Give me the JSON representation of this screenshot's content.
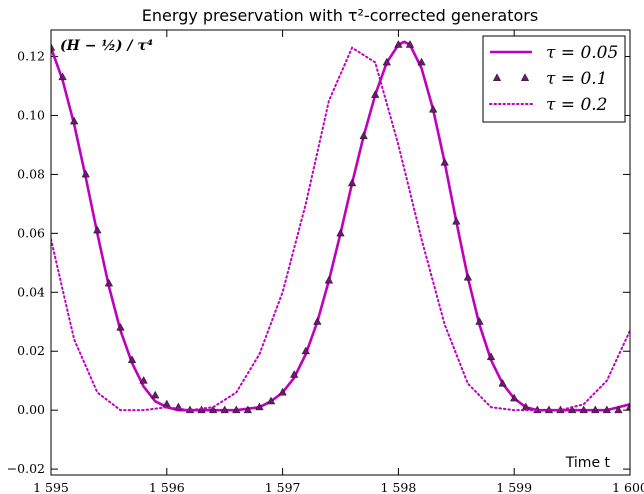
{
  "chart_data": {
    "type": "line",
    "title": "Energy preservation with τ²-corrected generators",
    "annotation": "(H − ½) / τ⁴",
    "xlabel": "Time t",
    "ylabel": "",
    "xlim": [
      1595,
      1600
    ],
    "ylim": [
      -0.022,
      0.129
    ],
    "x_ticks": [
      1595,
      1596,
      1597,
      1598,
      1599,
      1600
    ],
    "x_tick_labels": [
      "1 595",
      "1 596",
      "1 597",
      "1 598",
      "1 599",
      "1 600"
    ],
    "y_ticks": [
      -0.02,
      0.0,
      0.02,
      0.04,
      0.06,
      0.08,
      0.1,
      0.12
    ],
    "y_tick_labels": [
      "−0.02",
      "0.00",
      "0.02",
      "0.04",
      "0.06",
      "0.08",
      "0.10",
      "0.12"
    ],
    "legend_position": "top-right",
    "color": "#BF00BF",
    "marker_color": "#6A1A6A",
    "series": [
      {
        "name": "τ = 0.05",
        "style": "solid",
        "x": [
          1595.0,
          1595.1,
          1595.2,
          1595.3,
          1595.4,
          1595.5,
          1595.6,
          1595.7,
          1595.8,
          1595.9,
          1596.0,
          1596.1,
          1596.2,
          1596.3,
          1596.4,
          1596.5,
          1596.6,
          1596.7,
          1596.8,
          1596.9,
          1597.0,
          1597.1,
          1597.2,
          1597.3,
          1597.4,
          1597.5,
          1597.6,
          1597.7,
          1597.8,
          1597.9,
          1598.0,
          1598.05,
          1598.1,
          1598.2,
          1598.3,
          1598.4,
          1598.5,
          1598.6,
          1598.7,
          1598.8,
          1598.9,
          1599.0,
          1599.1,
          1599.2,
          1599.3,
          1599.4,
          1599.5,
          1599.6,
          1599.7,
          1599.8,
          1599.9,
          1600.0
        ],
        "y": [
          0.123,
          0.112,
          0.097,
          0.079,
          0.06,
          0.042,
          0.027,
          0.016,
          0.008,
          0.003,
          0.001,
          0.0,
          0.0,
          0.0,
          0.0,
          0.0,
          0.0,
          0.0005,
          0.001,
          0.003,
          0.006,
          0.011,
          0.019,
          0.03,
          0.044,
          0.06,
          0.077,
          0.093,
          0.107,
          0.118,
          0.124,
          0.125,
          0.124,
          0.116,
          0.102,
          0.084,
          0.064,
          0.045,
          0.029,
          0.017,
          0.009,
          0.004,
          0.001,
          0.0,
          0.0,
          0.0,
          0.0,
          0.0,
          0.0,
          0.0,
          0.001,
          0.002
        ]
      },
      {
        "name": "τ = 0.1",
        "style": "triangles",
        "x": [
          1595.0,
          1595.1,
          1595.2,
          1595.3,
          1595.4,
          1595.5,
          1595.6,
          1595.7,
          1595.8,
          1595.9,
          1596.0,
          1596.1,
          1596.2,
          1596.3,
          1596.4,
          1596.5,
          1596.6,
          1596.7,
          1596.8,
          1596.9,
          1597.0,
          1597.1,
          1597.2,
          1597.3,
          1597.4,
          1597.5,
          1597.6,
          1597.7,
          1597.8,
          1597.9,
          1598.0,
          1598.1,
          1598.2,
          1598.3,
          1598.4,
          1598.5,
          1598.6,
          1598.7,
          1598.8,
          1598.9,
          1599.0,
          1599.1,
          1599.2,
          1599.3,
          1599.4,
          1599.5,
          1599.6,
          1599.7,
          1599.8,
          1599.9,
          1600.0
        ],
        "y": [
          0.123,
          0.113,
          0.098,
          0.08,
          0.061,
          0.043,
          0.028,
          0.017,
          0.01,
          0.005,
          0.002,
          0.001,
          0.0,
          0.0,
          0.0,
          0.0,
          0.0,
          0.0,
          0.001,
          0.003,
          0.006,
          0.012,
          0.02,
          0.03,
          0.044,
          0.06,
          0.077,
          0.093,
          0.107,
          0.118,
          0.124,
          0.124,
          0.118,
          0.102,
          0.084,
          0.064,
          0.045,
          0.03,
          0.018,
          0.009,
          0.004,
          0.001,
          0.0,
          0.0,
          0.0,
          0.0,
          0.0,
          0.0,
          0.0,
          0.0,
          0.001
        ]
      },
      {
        "name": "τ = 0.2",
        "style": "dotted",
        "x": [
          1595.0,
          1595.2,
          1595.4,
          1595.6,
          1595.8,
          1596.0,
          1596.2,
          1596.4,
          1596.6,
          1596.8,
          1597.0,
          1597.2,
          1597.4,
          1597.6,
          1597.8,
          1598.0,
          1598.2,
          1598.4,
          1598.6,
          1598.8,
          1599.0,
          1599.2,
          1599.4,
          1599.6,
          1599.8,
          1600.0
        ],
        "y": [
          0.058,
          0.024,
          0.006,
          0.0,
          0.0,
          0.001,
          0.0,
          0.001,
          0.006,
          0.019,
          0.04,
          0.07,
          0.105,
          0.123,
          0.118,
          0.09,
          0.058,
          0.029,
          0.009,
          0.001,
          0.0,
          0.0,
          0.0,
          0.002,
          0.01,
          0.027
        ]
      }
    ]
  }
}
